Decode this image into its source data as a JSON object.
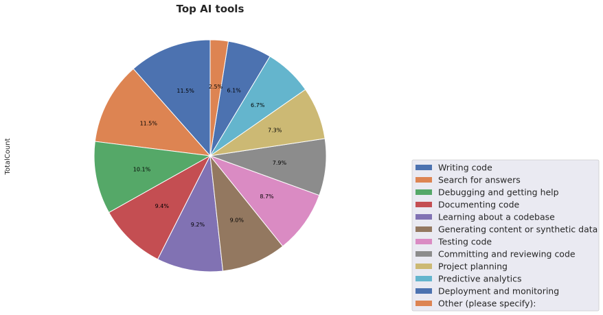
{
  "chart_data": {
    "type": "pie",
    "title": "Top AI tools",
    "ylabel": "TotalCount",
    "categories": [
      "Writing code",
      "Search for answers",
      "Debugging and getting help",
      "Documenting code",
      "Learning about a codebase",
      "Generating content or synthetic data",
      "Testing code",
      "Committing and reviewing code",
      "Project planning",
      "Predictive analytics",
      "Deployment and monitoring",
      "Other (please specify):"
    ],
    "values": [
      11.5,
      11.5,
      10.1,
      9.4,
      9.2,
      9.0,
      8.7,
      7.9,
      7.3,
      6.7,
      6.1,
      2.5
    ],
    "labels": [
      "11.5%",
      "11.5%",
      "10.1%",
      "9.4%",
      "9.2%",
      "9.0%",
      "8.7%",
      "7.9%",
      "7.3%",
      "6.7%",
      "6.1%",
      "2.5%"
    ],
    "colors": [
      "#4c72b0",
      "#dd8452",
      "#55a868",
      "#c44e52",
      "#8172b3",
      "#937860",
      "#da8bc3",
      "#8c8c8c",
      "#ccb974",
      "#64b5cd",
      "#4c72b0",
      "#dd8452"
    ],
    "start_angle_deg": 90,
    "direction": "counterclockwise",
    "legend_position": "lower-right"
  }
}
